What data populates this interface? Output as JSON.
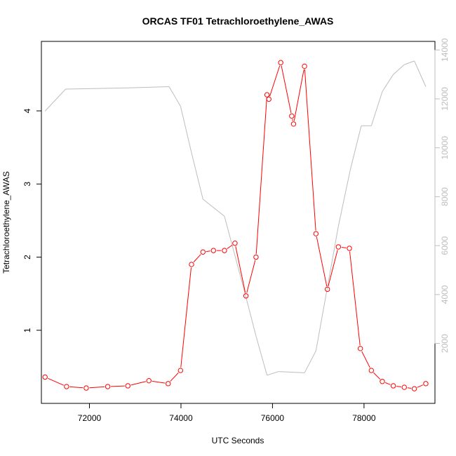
{
  "chart_data": {
    "type": "line",
    "title": "ORCAS TF01 Tetrachloroethylene_AWAS",
    "xlabel": "UTC Seconds",
    "ylabel": "Tetrachloroethylene_AWAS",
    "y2label": "",
    "xlim": [
      70950,
      79550
    ],
    "ylim": [
      0.0,
      4.95
    ],
    "y2lim": [
      -450,
      14350
    ],
    "xticks": [
      72000,
      74000,
      76000,
      78000
    ],
    "yticks": [
      1,
      2,
      3,
      4
    ],
    "y2ticks": [
      2000,
      4000,
      6000,
      8000,
      10000,
      12000,
      14000
    ],
    "grid": false,
    "colors": {
      "primary": "#ff0000",
      "secondary": "#bdbdbd",
      "frame": "#000000"
    },
    "series": [
      {
        "axis": "left",
        "style": "line-with-circles",
        "color": "#ff0000",
        "x": [
          71030,
          71500,
          71930,
          72400,
          72840,
          73300,
          73720,
          73990,
          74230,
          74480,
          74710,
          74950,
          75180,
          75420,
          75640,
          75880,
          75920,
          76180,
          76420,
          76460,
          76700,
          76950,
          77200,
          77440,
          77680,
          77920,
          78160,
          78400,
          78640,
          78880,
          79100,
          79350
        ],
        "y": [
          0.36,
          0.23,
          0.21,
          0.23,
          0.24,
          0.31,
          0.27,
          0.45,
          1.9,
          2.07,
          2.09,
          2.09,
          2.19,
          1.47,
          2.0,
          4.22,
          4.16,
          4.66,
          3.93,
          3.82,
          4.61,
          2.32,
          1.56,
          2.14,
          2.12,
          0.75,
          0.45,
          0.3,
          0.24,
          0.22,
          0.2,
          0.27
        ]
      },
      {
        "axis": "right",
        "style": "line",
        "color": "#bdbdbd",
        "x": [
          71030,
          71480,
          72850,
          73740,
          73990,
          74230,
          74480,
          74950,
          75420,
          75640,
          75880,
          76130,
          76700,
          76950,
          77440,
          77700,
          77940,
          78160,
          78400,
          78640,
          78880,
          79100,
          79350
        ],
        "y": [
          11500,
          12400,
          12450,
          12500,
          11700,
          9800,
          7900,
          7200,
          3900,
          2300,
          700,
          850,
          800,
          1700,
          6800,
          9100,
          10900,
          10900,
          12300,
          13000,
          13400,
          13550,
          12500
        ]
      }
    ]
  }
}
